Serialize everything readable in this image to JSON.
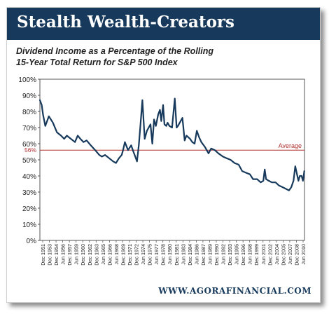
{
  "header": {
    "title": "Stealth Wealth-Creators"
  },
  "chart_data": {
    "type": "line",
    "title": "Dividend Income as a Percentage of the Rolling",
    "subtitle": "15-Year Total Return for S&P 500 Index",
    "xlabel": "",
    "ylabel": "",
    "ylim": [
      0,
      100
    ],
    "ytick_labels": [
      "0%",
      "10%",
      "20%",
      "30%",
      "40%",
      "50%",
      "60%",
      "70%",
      "80%",
      "90%",
      "100%"
    ],
    "xtick_labels": [
      "Dec 1951",
      "Dec 1953",
      "Dec 1954",
      "Jun 1956",
      "Dec 1957",
      "Jun 1959",
      "Dec 1960",
      "Dec 1962",
      "Dec 1963",
      "Jun 1965",
      "Dec 1966",
      "Jun 1968",
      "Dec 1969",
      "Dec 1971",
      "Dec 1972",
      "Jun 1974",
      "Dec 1975",
      "Jun 1977",
      "Dec 1978",
      "Jun 1980",
      "Dec 1981",
      "Jun 1983",
      "Dec 1984",
      "Jun 1986",
      "Dec 1987",
      "Jun 1989",
      "Dec 1990",
      "Jun 1992",
      "Dec 1993",
      "Jun 1995",
      "Dec 1996",
      "Jun 1998",
      "Dec 1999",
      "Jun 2001",
      "Dec 2002",
      "Jun 2004",
      "Dec 2005",
      "Jun 2007",
      "Dec 2008",
      "Jun 2010"
    ],
    "series": [
      {
        "color": "#173a5c",
        "x": [
          1951.9,
          1952.3,
          1952.6,
          1953.1,
          1953.9,
          1954.8,
          1955.7,
          1956.6,
          1957.3,
          1957.9,
          1958.8,
          1959.7,
          1960.3,
          1960.9,
          1961.6,
          1962.3,
          1963.2,
          1964.2,
          1965.1,
          1965.7,
          1966.4,
          1967.3,
          1968.2,
          1968.8,
          1969.5,
          1970.1,
          1970.4,
          1970.8,
          1971.5,
          1972.2,
          1972.7,
          1973.1,
          1973.5,
          1973.9,
          1974.3,
          1974.7,
          1975.2,
          1975.7,
          1976.1,
          1976.5,
          1976.9,
          1977.3,
          1977.7,
          1978.2,
          1978.6,
          1978.9,
          1979.3,
          1979.6,
          1980.0,
          1980.3,
          1980.7,
          1981.3,
          1981.9,
          1982.3,
          1982.6,
          1983.0,
          1983.6,
          1984.1,
          1984.5,
          1984.9,
          1985.3,
          1985.8,
          1986.3,
          1986.8,
          1987.3,
          1987.8,
          1988.6,
          1989.4,
          1990.0,
          1990.8,
          1991.6,
          1992.6,
          1993.4,
          1994.3,
          1995.2,
          1996.1,
          1996.9,
          1997.7,
          1998.6,
          1999.3,
          2000.2,
          2001.0,
          2001.6,
          2001.9,
          2002.2,
          2002.8,
          2003.5,
          2004.3,
          2005.1,
          2005.9,
          2006.6,
          2007.3,
          2007.8,
          2008.3,
          2008.7,
          2009.0,
          2009.4,
          2009.7,
          2010.1,
          2010.4,
          2010.7
        ],
        "values": [
          87,
          84,
          78,
          71,
          77,
          73,
          67,
          65,
          63,
          65,
          63,
          61,
          65,
          63,
          61,
          62,
          59,
          56,
          53,
          52,
          53,
          51,
          49,
          48,
          51,
          53,
          56,
          61,
          56,
          59,
          55,
          52,
          49,
          59,
          73,
          87,
          63,
          68,
          70,
          72,
          60,
          75,
          71,
          78,
          81,
          74,
          84,
          72,
          71,
          73,
          71,
          70,
          88,
          70,
          71,
          73,
          76,
          62,
          65,
          64,
          63,
          61,
          60,
          68,
          64,
          61,
          58,
          54,
          57,
          56,
          54,
          52,
          51,
          50,
          48,
          47,
          43,
          42,
          41,
          38,
          38,
          36,
          37,
          44,
          38,
          37,
          36,
          36,
          34,
          33,
          32,
          31,
          33,
          37,
          46,
          42,
          37,
          40,
          40,
          37,
          43
        ]
      }
    ],
    "reference_line": {
      "label": "Average",
      "value": 56,
      "value_label": "56%",
      "color": "#b03030"
    },
    "grid": false,
    "legend": "none"
  },
  "footer": {
    "url": "WWW.AGORAFINANCIAL.COM"
  }
}
